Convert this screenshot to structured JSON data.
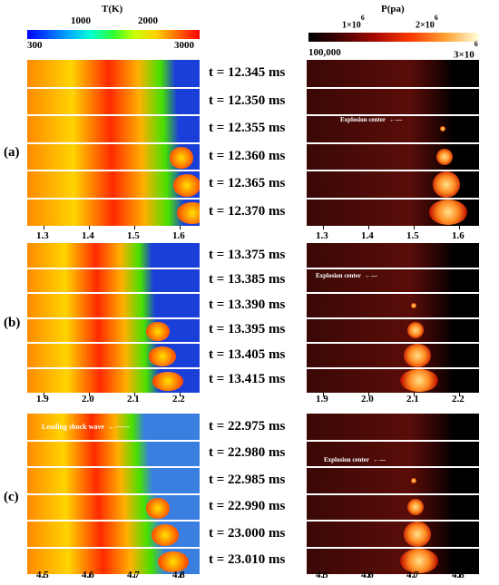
{
  "colorbars": {
    "temperature": {
      "title": "T(K)",
      "ticks_top": [
        "1000",
        "2000"
      ],
      "ticks_bottom": [
        "300",
        "3000"
      ]
    },
    "pressure": {
      "title": "P(pa)",
      "ticks_top": [
        "1×10",
        "2×10"
      ],
      "ticks_top_exp": [
        "6",
        "6"
      ],
      "ticks_bottom": [
        "100,000",
        "3×10"
      ],
      "ticks_bottom_exp": "6"
    }
  },
  "panels": [
    {
      "label": "(a)",
      "times": [
        "t = 12.345 ms",
        "t = 12.350 ms",
        "t = 12.355 ms",
        "t = 12.360 ms",
        "t = 12.365 ms",
        "t = 12.370 ms"
      ],
      "x_ticks": [
        "1.3",
        "1.4",
        "1.5",
        "1.6"
      ],
      "annotation_right": "Explosion center"
    },
    {
      "label": "(b)",
      "times": [
        "t = 13.375 ms",
        "t = 13.385 ms",
        "t = 13.390 ms",
        "t = 13.395 ms",
        "t = 13.405 ms",
        "t = 13.415 ms"
      ],
      "x_ticks": [
        "1.9",
        "2.0",
        "2.1",
        "2.2"
      ],
      "annotation_right": "Explosion center"
    },
    {
      "label": "(c)",
      "times": [
        "t = 22.975 ms",
        "t = 22.980 ms",
        "t = 22.985 ms",
        "t = 22.990 ms",
        "t = 23.000 ms",
        "t = 23.010 ms"
      ],
      "x_ticks": [
        "4.5",
        "4.6",
        "4.7",
        "4.8"
      ],
      "annotation_left": "Leading shock wave",
      "annotation_right": "Explosion center"
    }
  ],
  "colors": {
    "cold_blue": "#1a3fd8",
    "hot_red": "#d91a10",
    "pressure_dark": "#3a0806",
    "pressure_bright": "#ffe08a"
  }
}
